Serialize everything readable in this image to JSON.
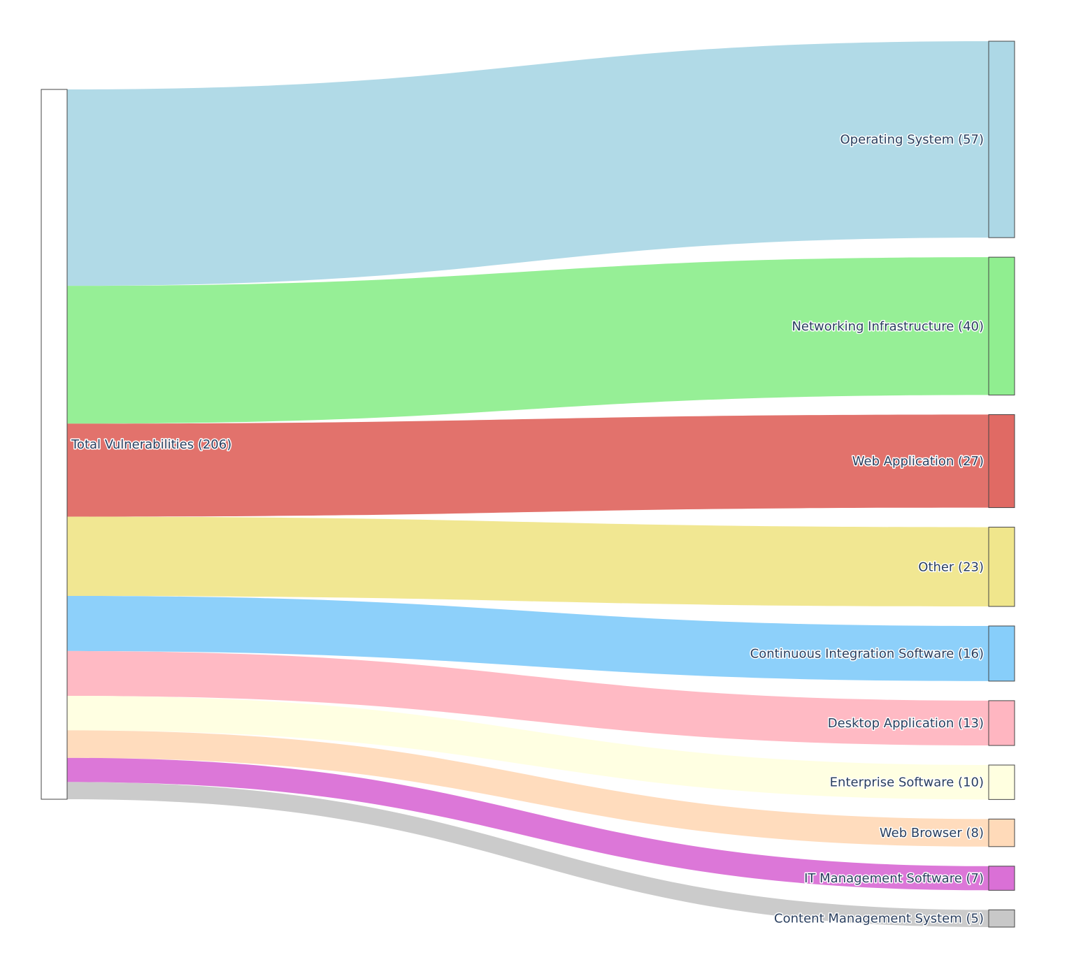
{
  "chart_data": {
    "type": "sankey",
    "source": {
      "label": "Total Vulnerabilities (206)",
      "value": 206,
      "color": "#ffffff"
    },
    "targets": [
      {
        "label": "Operating System (57)",
        "value": 57,
        "color": "#add8e6"
      },
      {
        "label": "Networking Infrastructure (40)",
        "value": 40,
        "color": "#90ee90"
      },
      {
        "label": "Web Application (27)",
        "value": 27,
        "color": "#e06a64"
      },
      {
        "label": "Other (23)",
        "value": 23,
        "color": "#f0e68c"
      },
      {
        "label": "Continuous Integration Software (16)",
        "value": 16,
        "color": "#87cefa"
      },
      {
        "label": "Desktop Application (13)",
        "value": 13,
        "color": "#ffb6c1"
      },
      {
        "label": "Enterprise Software (10)",
        "value": 10,
        "color": "#ffffe0"
      },
      {
        "label": "Web Browser (8)",
        "value": 8,
        "color": "#ffdab9"
      },
      {
        "label": "IT Management Software (7)",
        "value": 7,
        "color": "#da70d6"
      },
      {
        "label": "Content Management System (5)",
        "value": 5,
        "color": "#c8c8c8"
      }
    ]
  }
}
